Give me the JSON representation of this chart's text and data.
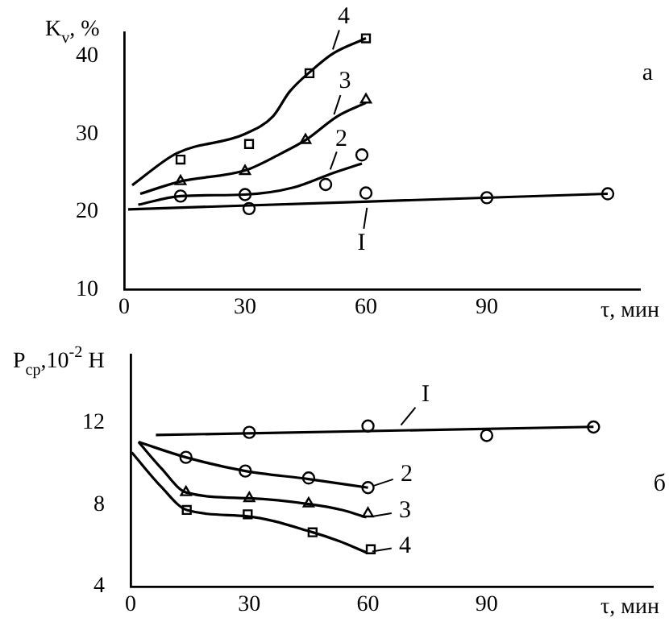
{
  "chart_data": [
    {
      "type": "line",
      "ylabel": "K$_{v}$, %",
      "xlabel": "τ, мин",
      "xlim": [
        0,
        128
      ],
      "xticks": [
        0,
        30,
        60,
        90
      ],
      "ylim": [
        10,
        43
      ],
      "yticks": [
        10,
        20,
        30,
        40
      ],
      "grid": false,
      "legend": "top",
      "annotations": [
        "а"
      ],
      "series": [
        {
          "name": "4",
          "type": "line",
          "color": "#000000",
          "marker": "none",
          "x": [
            2,
            13,
            30,
            37,
            41,
            46.6,
            52,
            60
          ],
          "values": [
            23.4,
            27.5,
            30,
            32.3,
            35.4,
            38.2,
            40.4,
            42.3
          ]
        },
        {
          "type": "scatter",
          "color": "#000000",
          "marker": "square",
          "x": [
            14,
            31,
            46,
            60
          ],
          "values": [
            26.7,
            28.7,
            37.8,
            42.3
          ]
        },
        {
          "name": "3",
          "type": "line",
          "color": "#000000",
          "marker": "none",
          "x": [
            4,
            14,
            30,
            39,
            45,
            53,
            60
          ],
          "values": [
            22.3,
            23.9,
            25.3,
            27.5,
            29.2,
            32.3,
            34
          ]
        },
        {
          "type": "scatter",
          "color": "#000000",
          "marker": "triangle",
          "x": [
            14,
            30,
            45,
            60
          ],
          "values": [
            23.9,
            25.2,
            29.2,
            34.4
          ]
        },
        {
          "name": "2",
          "type": "line",
          "color": "#000000",
          "marker": "none",
          "x": [
            3.5,
            14,
            30,
            42,
            52,
            59
          ],
          "values": [
            20.9,
            22,
            22.2,
            23.1,
            25,
            26.2
          ]
        },
        {
          "type": "scatter",
          "color": "#000000",
          "marker": "circle",
          "x": [
            14,
            30,
            50,
            59
          ],
          "values": [
            22,
            22.2,
            23.5,
            27.3
          ]
        },
        {
          "name": "I",
          "type": "line",
          "color": "#000000",
          "marker": "none",
          "x": [
            1,
            120
          ],
          "values": [
            20.3,
            22.3
          ]
        },
        {
          "type": "scatter",
          "color": "#000000",
          "marker": "circle",
          "x": [
            31,
            60,
            90,
            120
          ],
          "values": [
            20.4,
            22.4,
            21.8,
            22.3
          ]
        }
      ]
    },
    {
      "type": "line",
      "ylabel": "P$_{ср}$,10$^{-2}$ Н",
      "xlabel": "τ, мин",
      "xlim": [
        0,
        132
      ],
      "xticks": [
        0,
        30,
        60,
        90
      ],
      "ylim": [
        4,
        15.3
      ],
      "yticks": [
        4,
        8,
        12
      ],
      "grid": false,
      "legend": "right",
      "annotations": [
        "б"
      ],
      "series": [
        {
          "name": "I",
          "type": "line",
          "color": "#000000",
          "marker": "none",
          "x": [
            6.4,
            117
          ],
          "values": [
            11.4,
            11.8
          ]
        },
        {
          "type": "scatter",
          "color": "#000000",
          "marker": "circle",
          "x": [
            30,
            60,
            90,
            117
          ],
          "values": [
            11.53,
            11.84,
            11.38,
            11.79
          ]
        },
        {
          "name": "2",
          "type": "line",
          "color": "#000000",
          "marker": "none",
          "x": [
            2,
            14,
            29,
            45,
            60
          ],
          "values": [
            11.06,
            10.31,
            9.64,
            9.25,
            8.83
          ]
        },
        {
          "type": "scatter",
          "color": "#000000",
          "marker": "circle",
          "x": [
            14,
            29,
            45,
            60
          ],
          "values": [
            10.31,
            9.64,
            9.3,
            8.83
          ]
        },
        {
          "name": "3",
          "type": "line",
          "color": "#000000",
          "marker": "none",
          "x": [
            2,
            7.8,
            14,
            30,
            45,
            53.5,
            59.6
          ],
          "values": [
            11.06,
            9.77,
            8.6,
            8.31,
            8.03,
            7.74,
            7.38
          ]
        },
        {
          "type": "scatter",
          "color": "#000000",
          "marker": "triangle",
          "x": [
            14,
            30,
            45,
            60
          ],
          "values": [
            8.6,
            8.31,
            8.05,
            7.56
          ]
        },
        {
          "name": "4",
          "type": "line",
          "color": "#000000",
          "marker": "none",
          "x": [
            0.3,
            7.8,
            14.2,
            29.6,
            46,
            52.8,
            59.6
          ],
          "values": [
            10.55,
            8.86,
            7.74,
            7.43,
            6.65,
            6.21,
            5.66
          ]
        },
        {
          "type": "scatter",
          "color": "#000000",
          "marker": "square",
          "x": [
            14.2,
            29.6,
            46,
            60.7
          ],
          "values": [
            7.74,
            7.53,
            6.65,
            5.82
          ]
        }
      ]
    }
  ]
}
